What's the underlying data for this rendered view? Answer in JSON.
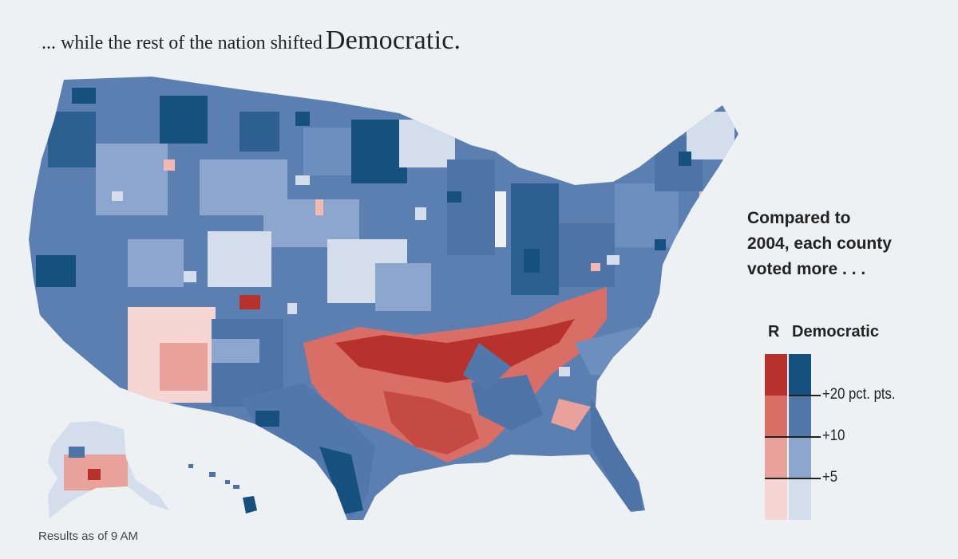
{
  "headline": {
    "lead": "... while the rest of the nation shifted",
    "emphasis": "Democratic."
  },
  "key": {
    "lines": [
      "Compared to",
      "2004, each county",
      "voted more . . ."
    ]
  },
  "legend": {
    "republican_label": "R",
    "democratic_label": "Democratic",
    "ticks": [
      "+20 pct. pts.",
      "+10",
      "+5"
    ],
    "republican_colors": [
      "#b8322d",
      "#d96e67",
      "#e8a29b",
      "#f6d6d2"
    ],
    "democratic_colors": [
      "#16507f",
      "#5278ab",
      "#8ca6cd",
      "#d3ddec"
    ]
  },
  "footnote": "Results as of 9 AM",
  "palette": {
    "dem_strong": "#16507f",
    "dem_mid": "#5278ab",
    "dem_light": "#8ca6cd",
    "dem_pale": "#d3ddec",
    "rep_strong": "#b8322d",
    "rep_mid": "#d96e67",
    "rep_light": "#e8a29b",
    "rep_pale": "#f6d6d2",
    "background": "#eef1f3"
  }
}
